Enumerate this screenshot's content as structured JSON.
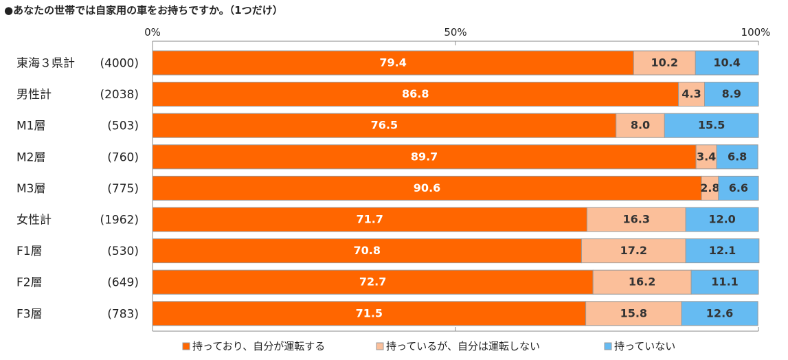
{
  "title": "●あなたの世帯では自家用の車をお持ちですか。（1つだけ）",
  "chart_data": {
    "type": "bar",
    "orientation": "horizontal",
    "stacked": "percent",
    "title": "●あなたの世帯では自家用の車をお持ちですか。（1つだけ）",
    "xlim": [
      0,
      100
    ],
    "x_ticks": [
      "0%",
      "50%",
      "100%"
    ],
    "categories": [
      "東海３県計",
      "男性計",
      "M1層",
      "M2層",
      "M3層",
      "女性計",
      "F1層",
      "F2層",
      "F3層"
    ],
    "sample_sizes": [
      "(4000)",
      "(2038)",
      "(503)",
      "(760)",
      "(775)",
      "(1962)",
      "(530)",
      "(649)",
      "(783)"
    ],
    "series": [
      {
        "name": "持っており、自分が運転する",
        "color": "#ff6600",
        "label_color": "#ffffff",
        "values": [
          79.4,
          86.8,
          76.5,
          89.7,
          90.6,
          71.7,
          70.8,
          72.7,
          71.5
        ]
      },
      {
        "name": "持っているが、自分は運転しない",
        "color": "#fbbf9a",
        "label_color": "#333333",
        "values": [
          10.2,
          4.3,
          8.0,
          3.4,
          2.8,
          16.3,
          17.2,
          16.2,
          15.8
        ]
      },
      {
        "name": "持っていない",
        "color": "#66bbf2",
        "label_color": "#333333",
        "values": [
          10.4,
          8.9,
          15.5,
          6.8,
          6.6,
          12.0,
          12.1,
          11.1,
          12.6
        ]
      }
    ],
    "legend_position": "bottom",
    "grid": false
  }
}
